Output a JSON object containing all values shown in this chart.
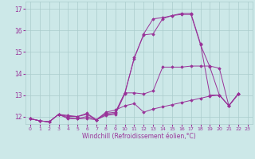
{
  "title": "",
  "xlabel": "Windchill (Refroidissement éolien,°C)",
  "bg_color": "#cce8e8",
  "line_color": "#993399",
  "grid_color": "#aacccc",
  "xlim": [
    -0.5,
    23.5
  ],
  "ylim": [
    11.65,
    17.35
  ],
  "yticks": [
    12,
    13,
    14,
    15,
    16,
    17
  ],
  "xticks": [
    0,
    1,
    2,
    3,
    4,
    5,
    6,
    7,
    8,
    9,
    10,
    11,
    12,
    13,
    14,
    15,
    16,
    17,
    18,
    19,
    20,
    21,
    22,
    23
  ],
  "series": [
    {
      "x": [
        0,
        1,
        2,
        3,
        4,
        5,
        6,
        7,
        8,
        9,
        10,
        11,
        12,
        13,
        14,
        15,
        16,
        17,
        18,
        19,
        20,
        21,
        22
      ],
      "y": [
        11.9,
        11.8,
        11.75,
        12.1,
        11.9,
        11.9,
        11.9,
        11.85,
        12.05,
        12.1,
        13.05,
        14.75,
        15.8,
        15.85,
        16.55,
        16.7,
        16.8,
        16.8,
        15.4,
        13.0,
        13.0,
        12.5,
        13.05
      ]
    },
    {
      "x": [
        0,
        1,
        2,
        3,
        4,
        5,
        6,
        7,
        8,
        9,
        10,
        11,
        12,
        13,
        14,
        15,
        16,
        17,
        18,
        19,
        20,
        21,
        22
      ],
      "y": [
        11.9,
        11.8,
        11.75,
        12.1,
        11.95,
        11.9,
        12.0,
        11.85,
        12.1,
        12.15,
        13.1,
        14.7,
        15.85,
        16.55,
        16.6,
        16.7,
        16.75,
        16.75,
        15.35,
        14.3,
        13.0,
        12.5,
        13.05
      ]
    },
    {
      "x": [
        0,
        1,
        2,
        3,
        4,
        5,
        6,
        7,
        8,
        9,
        10,
        11,
        12,
        13,
        14,
        15,
        16,
        17,
        18,
        19,
        20,
        21,
        22
      ],
      "y": [
        11.9,
        11.8,
        11.75,
        12.1,
        12.0,
        12.0,
        12.15,
        11.85,
        12.2,
        12.3,
        12.5,
        12.6,
        12.2,
        12.35,
        12.45,
        12.55,
        12.65,
        12.75,
        12.85,
        12.95,
        13.0,
        12.5,
        13.05
      ]
    },
    {
      "x": [
        0,
        1,
        2,
        3,
        4,
        5,
        6,
        7,
        8,
        9,
        10,
        11,
        12,
        13,
        14,
        15,
        16,
        17,
        18,
        19,
        20,
        21,
        22
      ],
      "y": [
        11.9,
        11.8,
        11.75,
        12.1,
        12.05,
        12.0,
        12.1,
        11.85,
        12.15,
        12.2,
        13.1,
        13.1,
        13.05,
        13.2,
        14.3,
        14.3,
        14.3,
        14.35,
        14.35,
        14.35,
        14.25,
        12.5,
        13.05
      ]
    }
  ]
}
